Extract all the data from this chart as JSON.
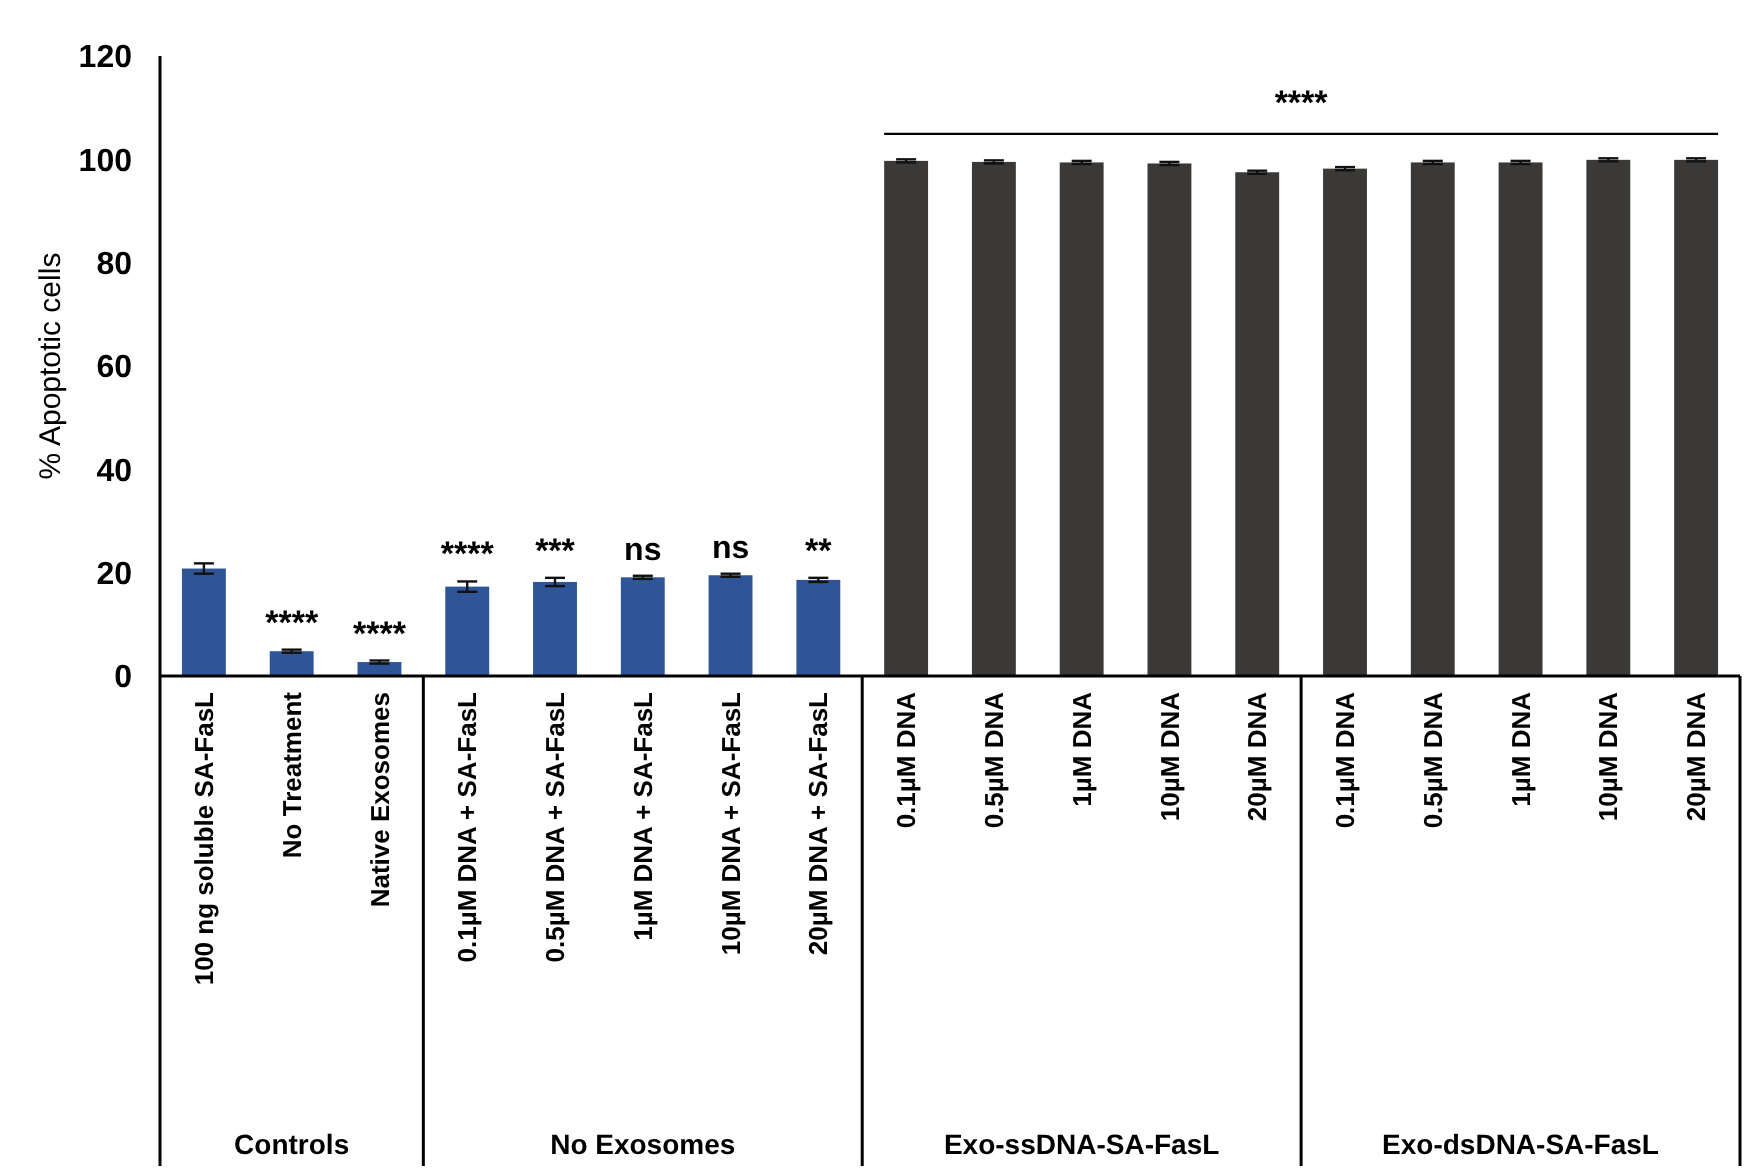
{
  "chart_data": {
    "type": "bar",
    "ylabel": "% Apoptotic cells",
    "categories": [
      "100 ng soluble SA-FasL",
      "No Treatment",
      "Native Exosomes",
      "0.1µM DNA + SA-FasL",
      "0.5µM DNA + SA-FasL",
      "1µM DNA + SA-FasL",
      "10µM DNA + SA-FasL",
      "20µM DNA + SA-FasL",
      "0.1µM DNA",
      "0.5µM DNA",
      "1µM DNA",
      "10µM DNA",
      "20µM DNA",
      "0.1µM DNA",
      "0.5µM DNA",
      "1µM DNA",
      "10µM DNA",
      "20µM DNA"
    ],
    "values": [
      20.8,
      4.8,
      2.7,
      17.3,
      18.2,
      19.1,
      19.5,
      18.6,
      99.7,
      99.5,
      99.4,
      99.2,
      97.5,
      98.2,
      99.4,
      99.4,
      99.9,
      99.9
    ],
    "errors": [
      1,
      0.3,
      0.3,
      1,
      0.8,
      0.3,
      0.3,
      0.4,
      0.3,
      0.3,
      0.3,
      0.3,
      0.3,
      0.3,
      0.3,
      0.3,
      0.3,
      0.3
    ],
    "colors": [
      "#2e5597",
      "#2e5597",
      "#2e5597",
      "#2e5597",
      "#2e5597",
      "#2e5597",
      "#2e5597",
      "#2e5597",
      "#3a3937",
      "#3a3937",
      "#3a3937",
      "#3a3937",
      "#3a3937",
      "#3a3937",
      "#3a3937",
      "#3a3937",
      "#3a3937",
      "#3a3937"
    ],
    "ylim": [
      0,
      120
    ],
    "yticks": [
      0,
      20,
      40,
      60,
      80,
      100,
      120
    ],
    "annotations": [
      "Controls",
      "No Exosomes",
      "Exo-ssDNA-SA-FasL",
      "Exo-dsDNA-SA-FasL",
      {
        "text": "****",
        "x": "No Treatment",
        "y": 5.1
      },
      {
        "text": "****",
        "x": "Native Exosomes",
        "y": 3
      },
      {
        "text": "****",
        "x": "0.1µM DNA + SA-FasL",
        "y": 18.3
      },
      {
        "text": "***",
        "x": "0.5µM DNA + SA-FasL",
        "y": 19
      },
      {
        "text": "ns",
        "x": "1µM DNA + SA-FasL",
        "y": 19.4
      },
      {
        "text": "ns",
        "x": "10µM DNA + SA-FasL",
        "y": 19.8
      },
      {
        "text": "**",
        "x": "20µM DNA + SA-FasL",
        "y": 19
      },
      "****"
    ]
  }
}
